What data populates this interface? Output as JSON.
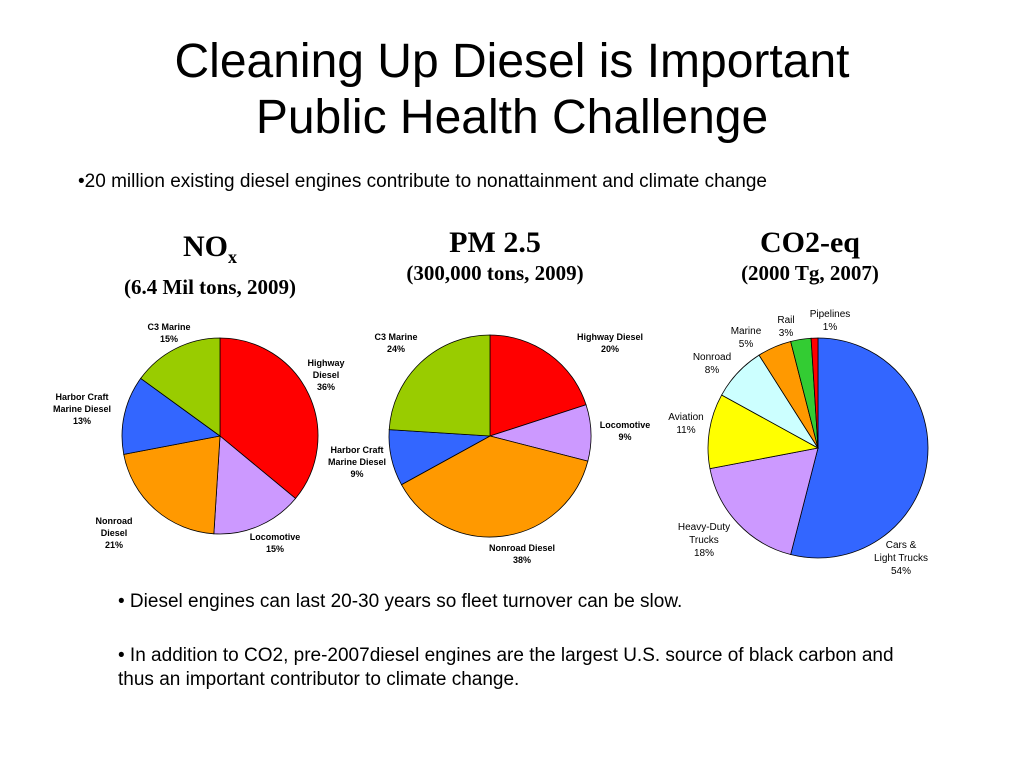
{
  "slide": {
    "title_line1": "Cleaning Up Diesel is Important",
    "title_line2": "Public Health Challenge",
    "subtitle": "•20 million existing diesel engines contribute to nonattainment and climate change",
    "bullets": [
      "•  Diesel engines can last 20-30 years so fleet turnover can be slow.",
      "•  In addition to CO2, pre-2007diesel engines are the largest U.S. source of black carbon and thus an important contributor to climate change."
    ]
  },
  "chart_data": [
    {
      "type": "pie",
      "title_main": "NO",
      "title_sub": "x",
      "title_detail": "(6.4 Mil tons, 2009)",
      "slices": [
        {
          "label": "Highway Diesel",
          "value": 36,
          "pct": "36%",
          "color": "#ff0000"
        },
        {
          "label": "Locomotive",
          "value": 15,
          "pct": "15%",
          "color": "#cc99ff"
        },
        {
          "label": "Nonroad Diesel",
          "value": 21,
          "pct": "21%",
          "color": "#ff9900"
        },
        {
          "label": "Harbor Craft Marine Diesel",
          "value": 13,
          "pct": "13%",
          "color": "#3366ff"
        },
        {
          "label": "C3 Marine",
          "value": 15,
          "pct": "15%",
          "color": "#99cc00"
        }
      ]
    },
    {
      "type": "pie",
      "title_main": "PM 2.5",
      "title_detail": "(300,000 tons, 2009)",
      "slices": [
        {
          "label": "Highway Diesel",
          "value": 20,
          "pct": "20%",
          "color": "#ff0000"
        },
        {
          "label": "Locomotive",
          "value": 9,
          "pct": "9%",
          "color": "#cc99ff"
        },
        {
          "label": "Nonroad Diesel",
          "value": 38,
          "pct": "38%",
          "color": "#ff9900"
        },
        {
          "label": "Harbor Craft Marine Diesel",
          "value": 9,
          "pct": "9%",
          "color": "#3366ff"
        },
        {
          "label": "C3 Marine",
          "value": 24,
          "pct": "24%",
          "color": "#99cc00"
        }
      ]
    },
    {
      "type": "pie",
      "title_main": "CO2-eq",
      "title_detail": "(2000 Tg, 2007)",
      "slices": [
        {
          "label": "Cars & Light Trucks",
          "value": 54,
          "pct": "54%",
          "color": "#3366ff"
        },
        {
          "label": "Heavy-Duty Trucks",
          "value": 18,
          "pct": "18%",
          "color": "#cc99ff"
        },
        {
          "label": "Aviation",
          "value": 11,
          "pct": "11%",
          "color": "#ffff00"
        },
        {
          "label": "Nonroad",
          "value": 8,
          "pct": "8%",
          "color": "#ccffff"
        },
        {
          "label": "Marine",
          "value": 5,
          "pct": "5%",
          "color": "#ff9900"
        },
        {
          "label": "Rail",
          "value": 3,
          "pct": "3%",
          "color": "#33cc33"
        },
        {
          "label": "Pipelines",
          "value": 1,
          "pct": "1%",
          "color": "#ff0000"
        }
      ]
    }
  ]
}
